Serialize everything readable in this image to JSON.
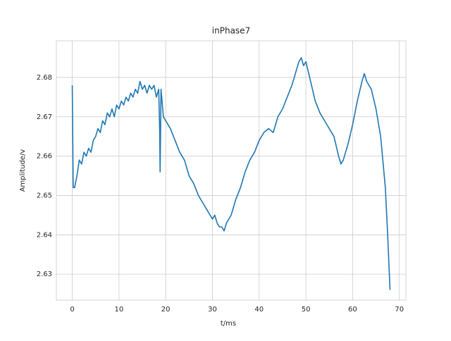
{
  "chart_data": {
    "type": "line",
    "title": "inPhase7",
    "x_label": "t/ms",
    "y_label": "Amplitude/v",
    "x": [
      0,
      0.2,
      0.5,
      1,
      1.5,
      2,
      2.5,
      3,
      3.5,
      4,
      4.5,
      5,
      5.5,
      6,
      6.5,
      7,
      7.5,
      8,
      8.5,
      9,
      9.5,
      10,
      10.5,
      11,
      11.5,
      12,
      12.5,
      13,
      13.5,
      14,
      14.5,
      15,
      15.5,
      16,
      16.5,
      17,
      17.5,
      18,
      18.5,
      18.7,
      18.8,
      19,
      19.5,
      20,
      21,
      22,
      23,
      24,
      25,
      26,
      27,
      28,
      29,
      30,
      30.5,
      31,
      31.5,
      32,
      32.5,
      33,
      34,
      35,
      36,
      37,
      38,
      39,
      40,
      41,
      42,
      43,
      44,
      45,
      46,
      47,
      48,
      48.5,
      49,
      49.5,
      50,
      51,
      52,
      53,
      54,
      55,
      56,
      57,
      57.5,
      58,
      59,
      60,
      61,
      62,
      62.5,
      63,
      64,
      65,
      66,
      67,
      67.5,
      68
    ],
    "values": [
      2.678,
      2.652,
      2.652,
      2.655,
      2.659,
      2.658,
      2.661,
      2.66,
      2.662,
      2.661,
      2.664,
      2.665,
      2.667,
      2.666,
      2.669,
      2.668,
      2.671,
      2.67,
      2.672,
      2.67,
      2.673,
      2.672,
      2.674,
      2.673,
      2.675,
      2.674,
      2.676,
      2.675,
      2.677,
      2.676,
      2.679,
      2.677,
      2.678,
      2.676,
      2.678,
      2.677,
      2.678,
      2.675,
      2.677,
      2.667,
      2.656,
      2.677,
      2.67,
      2.669,
      2.667,
      2.664,
      2.661,
      2.659,
      2.655,
      2.653,
      2.65,
      2.648,
      2.646,
      2.644,
      2.645,
      2.643,
      2.642,
      2.642,
      2.641,
      2.643,
      2.645,
      2.649,
      2.652,
      2.656,
      2.659,
      2.661,
      2.664,
      2.666,
      2.667,
      2.666,
      2.67,
      2.672,
      2.675,
      2.678,
      2.682,
      2.684,
      2.685,
      2.683,
      2.684,
      2.679,
      2.674,
      2.671,
      2.669,
      2.667,
      2.665,
      2.66,
      2.658,
      2.659,
      2.663,
      2.668,
      2.674,
      2.679,
      2.681,
      2.679,
      2.677,
      2.672,
      2.665,
      2.652,
      2.64,
      2.626
    ],
    "color": "#1f77b4",
    "xlim": [
      -3.4,
      71.4
    ],
    "xticks": [
      0,
      10,
      20,
      30,
      40,
      50,
      60,
      70
    ],
    "ylim": [
      2.6234,
      2.6893
    ],
    "yticks": [
      2.63,
      2.64,
      2.65,
      2.66,
      2.67,
      2.68
    ],
    "grid": true
  }
}
